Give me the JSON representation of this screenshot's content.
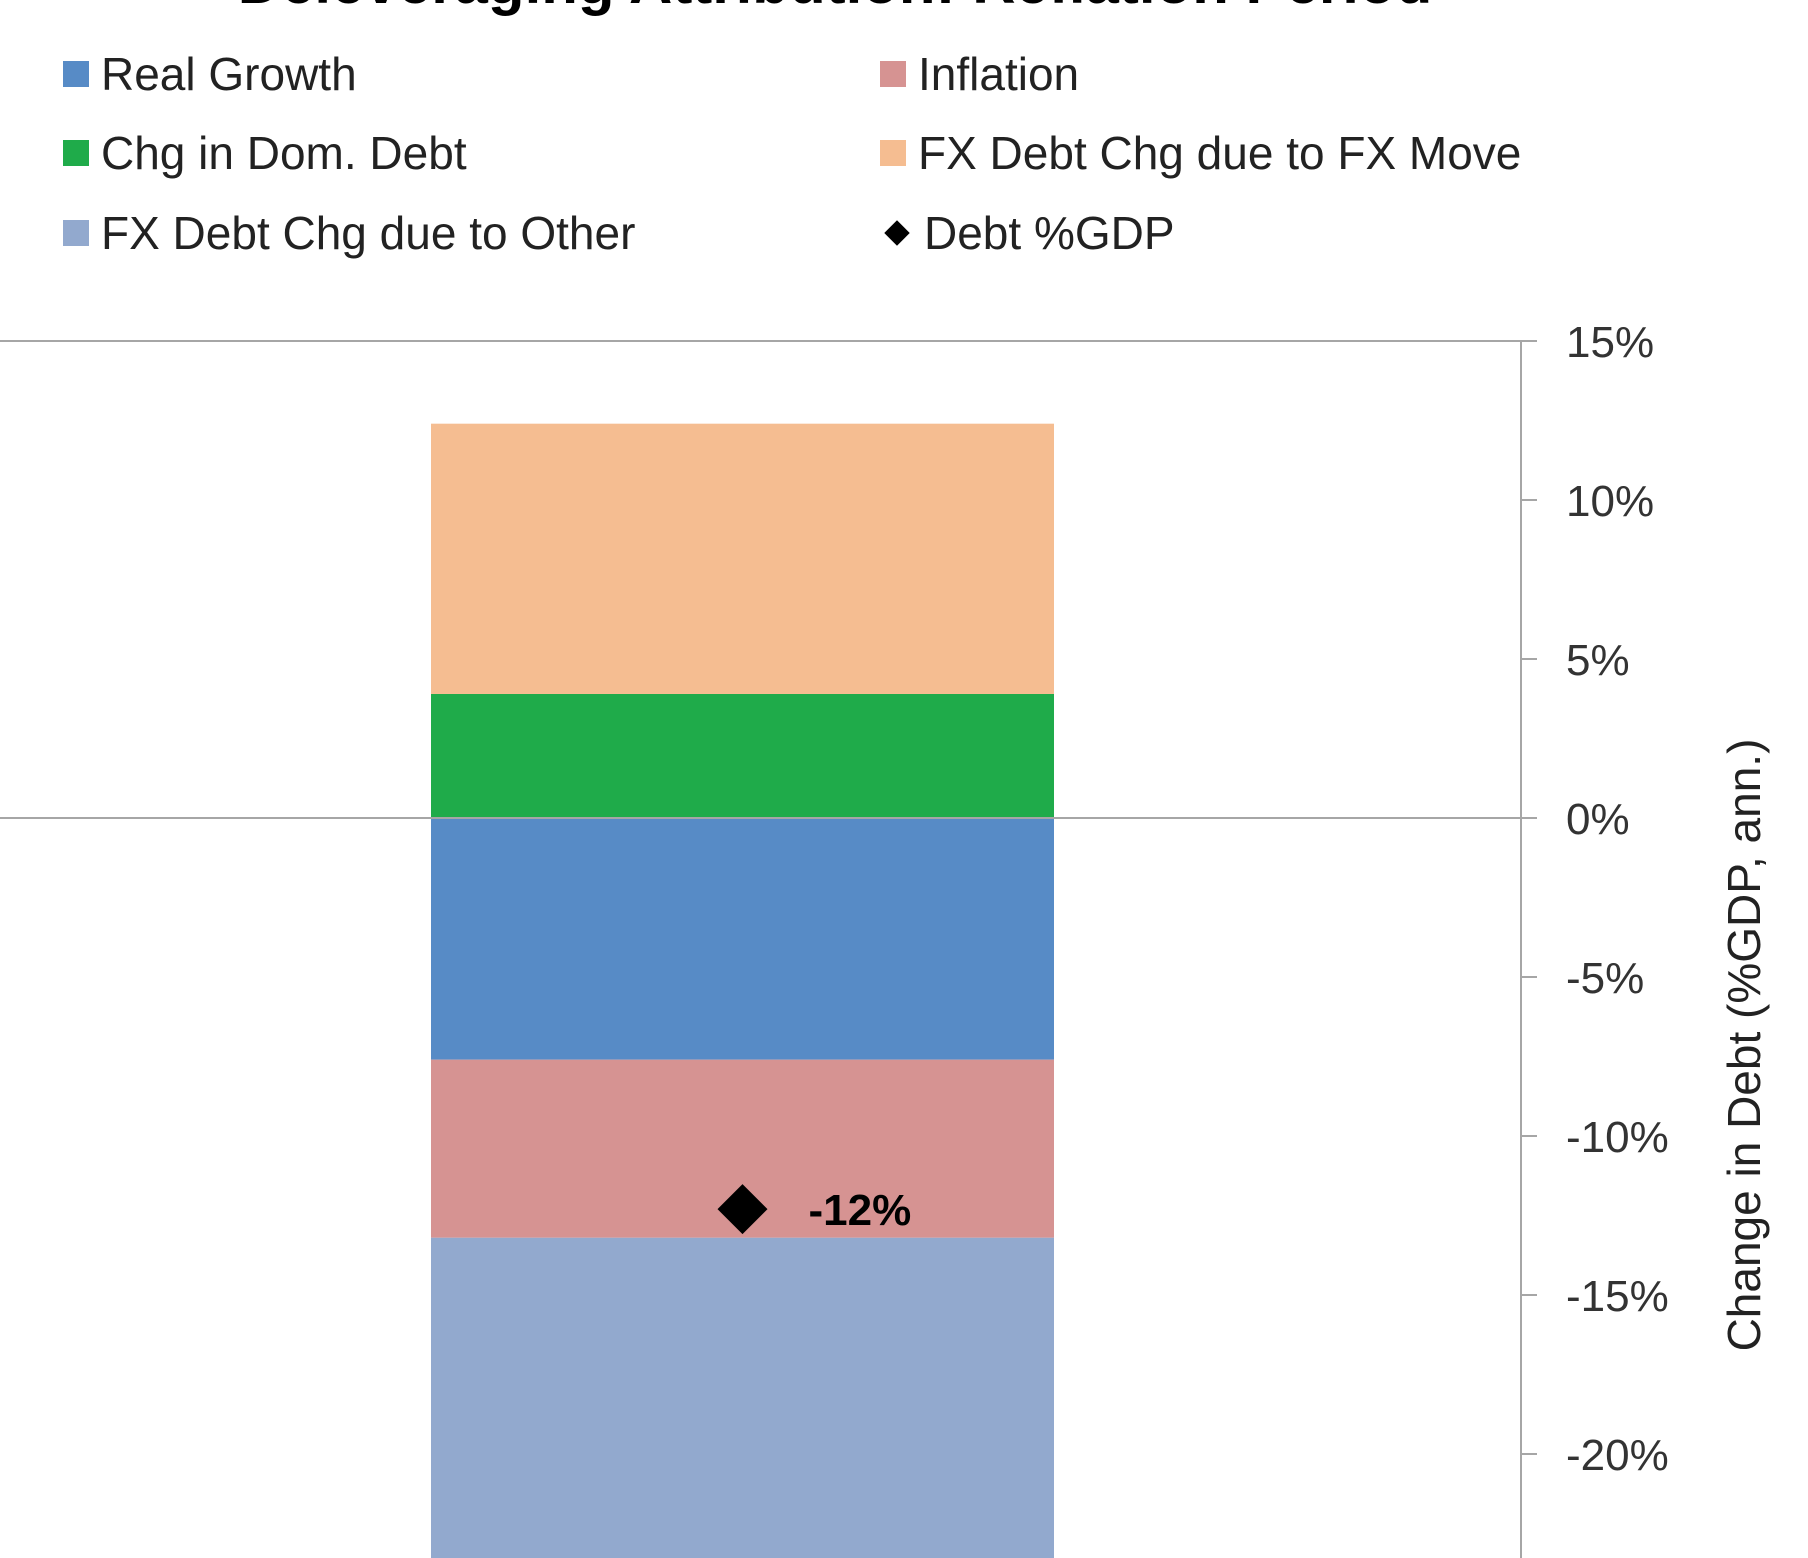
{
  "chart_data": {
    "type": "bar",
    "stacked": true,
    "title": "Deleveraging Attribution: Reflation Period",
    "categories": [
      ""
    ],
    "y_axis": {
      "label": "Change in Debt (%GDP, ann.)",
      "side": "right",
      "ylim": [
        -23,
        15
      ],
      "ticks": [
        15,
        10,
        5,
        0,
        -5,
        -10,
        -15,
        -20
      ],
      "tick_labels": [
        "15%",
        "10%",
        "5%",
        "0%",
        "-5%",
        "-10%",
        "-15%",
        "-20%"
      ]
    },
    "grid": false,
    "legend_position": "top",
    "series": [
      {
        "name": "Real Growth",
        "values": [
          -7.6
        ],
        "color": "#578bc6"
      },
      {
        "name": "Inflation",
        "values": [
          -5.6
        ],
        "color": "#d69392"
      },
      {
        "name": "Chg in Dom. Debt",
        "values": [
          3.9
        ],
        "color": "#1fab4a"
      },
      {
        "name": "FX Debt Chg due to FX Move",
        "values": [
          8.5
        ],
        "color": "#f5bd91"
      },
      {
        "name": "FX Debt Chg due to Other",
        "values": [
          -10.5
        ],
        "color": "#92a9ce"
      }
    ],
    "markers": [
      {
        "name": "Debt %GDP",
        "values": [
          -12.3
        ],
        "label": "-12%",
        "color": "#000000",
        "shape": "diamond"
      }
    ]
  }
}
